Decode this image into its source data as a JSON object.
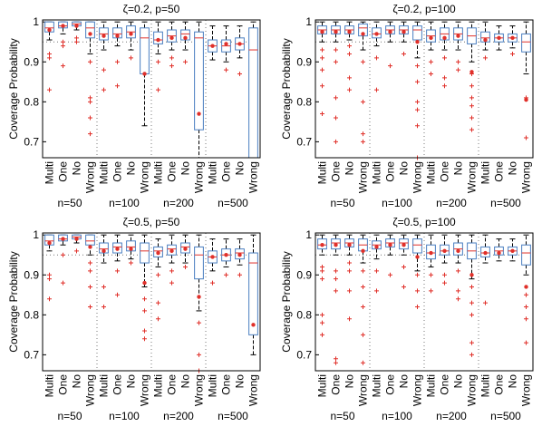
{
  "chart_data": [
    {
      "type": "box",
      "title": "ζ=0.2, p=50",
      "ylabel": "Coverage Probability",
      "categories": [
        "Multi",
        "One",
        "No",
        "Wrong",
        "Multi",
        "One",
        "No",
        "Wrong",
        "Multi",
        "One",
        "No",
        "Wrong",
        "Multi",
        "One",
        "No",
        "Wrong"
      ],
      "groups": [
        "n=50",
        "n=100",
        "n=200",
        "n=500"
      ],
      "ylim": [
        0.66,
        1.005
      ],
      "yticks": [
        0.7,
        0.8,
        0.9,
        1
      ],
      "reference_line": 0.95,
      "box_color": "#4a7fc1",
      "median_color": "#e0302a",
      "whisker_color": "#000000",
      "outlier_color": "#e0302a",
      "boxes": [
        {
          "whislo": 0.955,
          "q1": 0.975,
          "med": 0.985,
          "q3": 1.0,
          "whishi": 1.0,
          "mean": 0.98,
          "fliers": [
            0.92,
            0.91,
            0.83
          ]
        },
        {
          "whislo": 0.97,
          "q1": 0.985,
          "med": 0.99,
          "q3": 1.0,
          "whishi": 1.0,
          "mean": 0.99,
          "fliers": [
            0.95,
            0.94,
            0.89
          ]
        },
        {
          "whislo": 0.98,
          "q1": 0.99,
          "med": 0.995,
          "q3": 1.0,
          "whishi": 1.0,
          "mean": 0.99,
          "fliers": [
            0.96,
            0.95
          ]
        },
        {
          "whislo": 0.92,
          "q1": 0.96,
          "med": 0.985,
          "q3": 1.0,
          "whishi": 1.0,
          "mean": 0.97,
          "fliers": [
            0.9,
            0.81,
            0.8,
            0.76,
            0.72
          ]
        },
        {
          "whislo": 0.93,
          "q1": 0.955,
          "med": 0.97,
          "q3": 0.985,
          "whishi": 1.0,
          "mean": 0.965,
          "fliers": [
            0.88,
            0.83
          ]
        },
        {
          "whislo": 0.94,
          "q1": 0.96,
          "med": 0.97,
          "q3": 0.985,
          "whishi": 1.0,
          "mean": 0.965,
          "fliers": [
            0.9,
            0.84
          ]
        },
        {
          "whislo": 0.93,
          "q1": 0.96,
          "med": 0.975,
          "q3": 0.99,
          "whishi": 1.0,
          "mean": 0.97,
          "fliers": [
            0.91
          ]
        },
        {
          "whislo": 0.74,
          "q1": 0.87,
          "med": 0.96,
          "q3": 0.985,
          "whishi": 1.0,
          "mean": 0.87,
          "fliers": []
        },
        {
          "whislo": 0.92,
          "q1": 0.945,
          "med": 0.955,
          "q3": 0.975,
          "whishi": 1.0,
          "mean": 0.955,
          "fliers": [
            0.9,
            0.83
          ]
        },
        {
          "whislo": 0.93,
          "q1": 0.95,
          "med": 0.965,
          "q3": 0.98,
          "whishi": 1.0,
          "mean": 0.96,
          "fliers": [
            0.91,
            0.89
          ]
        },
        {
          "whislo": 0.93,
          "q1": 0.955,
          "med": 0.97,
          "q3": 0.98,
          "whishi": 1.0,
          "mean": 0.96,
          "fliers": [
            0.9
          ]
        },
        {
          "whislo": 0.66,
          "q1": 0.73,
          "med": 0.96,
          "q3": 0.975,
          "whishi": 1.0,
          "mean": 0.77,
          "fliers": []
        },
        {
          "whislo": 0.905,
          "q1": 0.925,
          "med": 0.94,
          "q3": 0.955,
          "whishi": 0.99,
          "mean": 0.94,
          "fliers": []
        },
        {
          "whislo": 0.9,
          "q1": 0.925,
          "med": 0.94,
          "q3": 0.955,
          "whishi": 0.99,
          "mean": 0.945,
          "fliers": [
            0.88
          ]
        },
        {
          "whislo": 0.91,
          "q1": 0.93,
          "med": 0.945,
          "q3": 0.96,
          "whishi": 0.99,
          "mean": 0.945,
          "fliers": [
            0.87
          ]
        },
        {
          "whislo": 0.66,
          "q1": 0.66,
          "med": 0.93,
          "q3": 0.985,
          "whishi": 1.0,
          "mean": null,
          "fliers": []
        }
      ]
    },
    {
      "type": "box",
      "title": "ζ=0.2, p=100",
      "ylabel": "Coverage Probability",
      "categories": [
        "Multi",
        "One",
        "No",
        "Wrong",
        "Multi",
        "One",
        "No",
        "Wrong",
        "Multi",
        "One",
        "No",
        "Wrong",
        "Multi",
        "One",
        "No",
        "Wrong"
      ],
      "groups": [
        "n=50",
        "n=100",
        "n=200",
        "n=500"
      ],
      "ylim": [
        0.66,
        1.005
      ],
      "yticks": [
        0.7,
        0.8,
        0.9,
        1
      ],
      "reference_line": 0.95,
      "box_color": "#4a7fc1",
      "median_color": "#e0302a",
      "whisker_color": "#000000",
      "outlier_color": "#e0302a",
      "boxes": [
        {
          "whislo": 0.95,
          "q1": 0.97,
          "med": 0.98,
          "q3": 0.99,
          "whishi": 1.0,
          "mean": 0.975,
          "fliers": [
            0.93,
            0.91,
            0.88,
            0.84,
            0.77
          ]
        },
        {
          "whislo": 0.95,
          "q1": 0.97,
          "med": 0.98,
          "q3": 0.99,
          "whishi": 1.0,
          "mean": 0.975,
          "fliers": [
            0.93,
            0.9,
            0.81,
            0.76,
            0.7
          ]
        },
        {
          "whislo": 0.955,
          "q1": 0.97,
          "med": 0.98,
          "q3": 0.99,
          "whishi": 1.0,
          "mean": 0.975,
          "fliers": [
            0.94,
            0.92,
            0.86,
            0.83
          ]
        },
        {
          "whislo": 0.93,
          "q1": 0.965,
          "med": 0.985,
          "q3": 0.995,
          "whishi": 1.0,
          "mean": 0.97,
          "fliers": [
            0.9,
            0.8,
            0.72,
            0.7
          ]
        },
        {
          "whislo": 0.94,
          "q1": 0.96,
          "med": 0.97,
          "q3": 0.985,
          "whishi": 1.0,
          "mean": 0.97,
          "fliers": [
            0.91,
            0.83
          ]
        },
        {
          "whislo": 0.95,
          "q1": 0.97,
          "med": 0.98,
          "q3": 0.99,
          "whishi": 1.0,
          "mean": 0.975,
          "fliers": [
            0.89
          ]
        },
        {
          "whislo": 0.95,
          "q1": 0.97,
          "med": 0.98,
          "q3": 0.99,
          "whishi": 1.0,
          "mean": 0.975,
          "fliers": [
            0.92
          ]
        },
        {
          "whislo": 0.91,
          "q1": 0.955,
          "med": 0.98,
          "q3": 0.99,
          "whishi": 1.0,
          "mean": 0.95,
          "fliers": [
            0.89,
            0.85,
            0.8,
            0.78,
            0.74,
            0.66
          ]
        },
        {
          "whislo": 0.93,
          "q1": 0.95,
          "med": 0.965,
          "q3": 0.98,
          "whishi": 1.0,
          "mean": 0.96,
          "fliers": [
            0.9,
            0.87
          ]
        },
        {
          "whislo": 0.93,
          "q1": 0.955,
          "med": 0.97,
          "q3": 0.985,
          "whishi": 1.0,
          "mean": 0.96,
          "fliers": [
            0.91,
            0.86,
            0.84
          ]
        },
        {
          "whislo": 0.93,
          "q1": 0.955,
          "med": 0.97,
          "q3": 0.985,
          "whishi": 1.0,
          "mean": 0.965,
          "fliers": [
            0.9,
            0.88
          ]
        },
        {
          "whislo": 0.9,
          "q1": 0.945,
          "med": 0.965,
          "q3": 0.985,
          "whishi": 1.0,
          "mean": 0.875,
          "fliers": [
            0.87,
            0.84,
            0.81,
            0.79,
            0.76,
            0.73
          ]
        },
        {
          "whislo": 0.93,
          "q1": 0.95,
          "med": 0.96,
          "q3": 0.975,
          "whishi": 1.0,
          "mean": 0.955,
          "fliers": [
            0.91
          ]
        },
        {
          "whislo": 0.93,
          "q1": 0.95,
          "med": 0.96,
          "q3": 0.97,
          "whishi": 0.99,
          "mean": 0.96,
          "fliers": []
        },
        {
          "whislo": 0.935,
          "q1": 0.95,
          "med": 0.96,
          "q3": 0.97,
          "whishi": 0.99,
          "mean": 0.96,
          "fliers": [
            0.92
          ]
        },
        {
          "whislo": 0.87,
          "q1": 0.925,
          "med": 0.95,
          "q3": 0.97,
          "whishi": 1.0,
          "mean": 0.805,
          "fliers": [
            0.81,
            0.71
          ]
        }
      ]
    },
    {
      "type": "box",
      "title": "ζ=0.5, p=50",
      "ylabel": "Coverage Probability",
      "categories": [
        "Multi",
        "One",
        "No",
        "Wrong",
        "Multi",
        "One",
        "No",
        "Wrong",
        "Multi",
        "One",
        "No",
        "Wrong",
        "Multi",
        "One",
        "No",
        "Wrong"
      ],
      "groups": [
        "n=50",
        "n=100",
        "n=200",
        "n=500"
      ],
      "ylim": [
        0.66,
        1.005
      ],
      "yticks": [
        0.7,
        0.8,
        0.9,
        1
      ],
      "reference_line": 0.95,
      "box_color": "#4a7fc1",
      "median_color": "#e0302a",
      "whisker_color": "#000000",
      "outlier_color": "#e0302a",
      "boxes": [
        {
          "whislo": 0.96,
          "q1": 0.975,
          "med": 0.985,
          "q3": 1.0,
          "whishi": 1.0,
          "mean": 0.98,
          "fliers": [
            0.9,
            0.89,
            0.84
          ]
        },
        {
          "whislo": 0.975,
          "q1": 0.985,
          "med": 0.99,
          "q3": 1.0,
          "whishi": 1.0,
          "mean": 0.99,
          "fliers": [
            0.95,
            0.88
          ]
        },
        {
          "whislo": 0.98,
          "q1": 0.99,
          "med": 0.995,
          "q3": 1.0,
          "whishi": 1.0,
          "mean": 0.99,
          "fliers": [
            0.96
          ]
        },
        {
          "whislo": 0.95,
          "q1": 0.975,
          "med": 0.985,
          "q3": 1.0,
          "whishi": 1.0,
          "mean": 0.97,
          "fliers": [
            0.93,
            0.91,
            0.87,
            0.82
          ]
        },
        {
          "whislo": 0.93,
          "q1": 0.955,
          "med": 0.965,
          "q3": 0.98,
          "whishi": 1.0,
          "mean": 0.96,
          "fliers": [
            0.87,
            0.82
          ]
        },
        {
          "whislo": 0.935,
          "q1": 0.955,
          "med": 0.97,
          "q3": 0.98,
          "whishi": 1.0,
          "mean": 0.965,
          "fliers": [
            0.91,
            0.85
          ]
        },
        {
          "whislo": 0.94,
          "q1": 0.96,
          "med": 0.97,
          "q3": 0.985,
          "whishi": 1.0,
          "mean": 0.965,
          "fliers": [
            0.93
          ]
        },
        {
          "whislo": 0.87,
          "q1": 0.93,
          "med": 0.96,
          "q3": 0.98,
          "whishi": 1.0,
          "mean": 0.88,
          "fliers": [
            0.84,
            0.81,
            0.76,
            0.74
          ]
        },
        {
          "whislo": 0.92,
          "q1": 0.945,
          "med": 0.96,
          "q3": 0.97,
          "whishi": 0.99,
          "mean": 0.955,
          "fliers": [
            0.9,
            0.83,
            0.79
          ]
        },
        {
          "whislo": 0.93,
          "q1": 0.95,
          "med": 0.965,
          "q3": 0.975,
          "whishi": 1.0,
          "mean": 0.96,
          "fliers": [
            0.91,
            0.88
          ]
        },
        {
          "whislo": 0.93,
          "q1": 0.955,
          "med": 0.97,
          "q3": 0.98,
          "whishi": 1.0,
          "mean": 0.965,
          "fliers": [
            0.92
          ]
        },
        {
          "whislo": 0.81,
          "q1": 0.89,
          "med": 0.95,
          "q3": 0.97,
          "whishi": 1.0,
          "mean": 0.845,
          "fliers": [
            0.78,
            0.7,
            0.66
          ]
        },
        {
          "whislo": 0.91,
          "q1": 0.93,
          "med": 0.945,
          "q3": 0.96,
          "whishi": 0.99,
          "mean": 0.945,
          "fliers": [
            0.88
          ]
        },
        {
          "whislo": 0.92,
          "q1": 0.935,
          "med": 0.95,
          "q3": 0.965,
          "whishi": 0.99,
          "mean": 0.95,
          "fliers": [
            0.9
          ]
        },
        {
          "whislo": 0.925,
          "q1": 0.94,
          "med": 0.955,
          "q3": 0.965,
          "whishi": 0.99,
          "mean": 0.95,
          "fliers": [
            0.9
          ]
        },
        {
          "whislo": 0.7,
          "q1": 0.75,
          "med": 0.93,
          "q3": 0.955,
          "whishi": 1.0,
          "mean": 0.775,
          "fliers": []
        }
      ]
    },
    {
      "type": "box",
      "title": "ζ=0.5, p=100",
      "ylabel": "Coverage Probability",
      "categories": [
        "Multi",
        "One",
        "No",
        "Wrong",
        "Multi",
        "One",
        "No",
        "Wrong",
        "Multi",
        "One",
        "No",
        "Wrong",
        "Multi",
        "One",
        "No",
        "Wrong"
      ],
      "groups": [
        "n=50",
        "n=100",
        "n=200",
        "n=500"
      ],
      "ylim": [
        0.66,
        1.005
      ],
      "yticks": [
        0.7,
        0.8,
        0.9,
        1
      ],
      "reference_line": 0.95,
      "box_color": "#4a7fc1",
      "median_color": "#e0302a",
      "whisker_color": "#000000",
      "outlier_color": "#e0302a",
      "boxes": [
        {
          "whislo": 0.95,
          "q1": 0.965,
          "med": 0.975,
          "q3": 0.99,
          "whishi": 1.0,
          "mean": 0.975,
          "fliers": [
            0.92,
            0.91,
            0.89,
            0.8,
            0.78,
            0.75
          ]
        },
        {
          "whislo": 0.95,
          "q1": 0.965,
          "med": 0.98,
          "q3": 0.99,
          "whishi": 1.0,
          "mean": 0.975,
          "fliers": [
            0.91,
            0.89,
            0.86,
            0.69,
            0.68
          ]
        },
        {
          "whislo": 0.95,
          "q1": 0.97,
          "med": 0.98,
          "q3": 0.99,
          "whishi": 1.0,
          "mean": 0.975,
          "fliers": [
            0.93,
            0.91,
            0.86,
            0.79
          ]
        },
        {
          "whislo": 0.93,
          "q1": 0.96,
          "med": 0.975,
          "q3": 0.99,
          "whishi": 1.0,
          "mean": 0.96,
          "fliers": [
            0.91,
            0.87,
            0.82,
            0.75,
            0.68
          ]
        },
        {
          "whislo": 0.94,
          "q1": 0.965,
          "med": 0.975,
          "q3": 0.985,
          "whishi": 1.0,
          "mean": 0.97,
          "fliers": [
            0.91,
            0.86
          ]
        },
        {
          "whislo": 0.95,
          "q1": 0.97,
          "med": 0.98,
          "q3": 0.99,
          "whishi": 1.0,
          "mean": 0.975,
          "fliers": [
            0.9
          ]
        },
        {
          "whislo": 0.95,
          "q1": 0.965,
          "med": 0.98,
          "q3": 0.99,
          "whishi": 1.0,
          "mean": 0.975,
          "fliers": [
            0.92,
            0.87
          ]
        },
        {
          "whislo": 0.91,
          "q1": 0.955,
          "med": 0.975,
          "q3": 0.99,
          "whishi": 1.0,
          "mean": 0.945,
          "fliers": [
            0.9,
            0.86,
            0.82
          ]
        },
        {
          "whislo": 0.92,
          "q1": 0.94,
          "med": 0.955,
          "q3": 0.975,
          "whishi": 1.0,
          "mean": 0.955,
          "fliers": [
            0.9,
            0.86
          ]
        },
        {
          "whislo": 0.93,
          "q1": 0.95,
          "med": 0.96,
          "q3": 0.975,
          "whishi": 1.0,
          "mean": 0.96,
          "fliers": [
            0.9,
            0.88
          ]
        },
        {
          "whislo": 0.93,
          "q1": 0.95,
          "med": 0.965,
          "q3": 0.98,
          "whishi": 1.0,
          "mean": 0.96,
          "fliers": [
            0.91,
            0.86,
            0.84
          ]
        },
        {
          "whislo": 0.89,
          "q1": 0.94,
          "med": 0.96,
          "q3": 0.98,
          "whishi": 1.0,
          "mean": 0.9,
          "fliers": [
            0.87,
            0.83,
            0.8,
            0.73,
            0.7
          ]
        },
        {
          "whislo": 0.93,
          "q1": 0.945,
          "med": 0.955,
          "q3": 0.97,
          "whishi": 1.0,
          "mean": 0.955,
          "fliers": [
            0.83
          ]
        },
        {
          "whislo": 0.935,
          "q1": 0.95,
          "med": 0.96,
          "q3": 0.97,
          "whishi": 0.99,
          "mean": 0.955,
          "fliers": []
        },
        {
          "whislo": 0.935,
          "q1": 0.95,
          "med": 0.96,
          "q3": 0.97,
          "whishi": 0.99,
          "mean": 0.96,
          "fliers": []
        },
        {
          "whislo": 0.9,
          "q1": 0.925,
          "med": 0.955,
          "q3": 0.975,
          "whishi": 1.0,
          "mean": 0.87,
          "fliers": [
            0.85,
            0.82,
            0.79,
            0.73
          ]
        }
      ]
    }
  ]
}
